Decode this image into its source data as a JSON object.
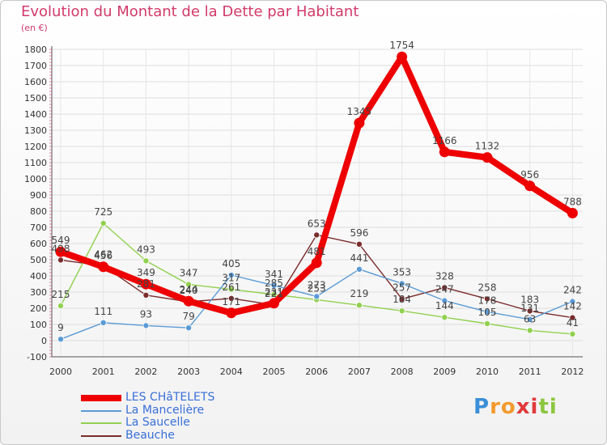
{
  "chart_data": {
    "type": "line",
    "title": "Evolution du Montant de la Dette par Habitant",
    "unit_label": "(en €)",
    "categories": [
      "2000",
      "2001",
      "2002",
      "2003",
      "2004",
      "2005",
      "2006",
      "2007",
      "2008",
      "2009",
      "2010",
      "2011",
      "2012"
    ],
    "ylim": [
      -100,
      1800
    ],
    "yticks": [
      "-100",
      "0",
      "100",
      "200",
      "300",
      "400",
      "500",
      "600",
      "700",
      "800",
      "900",
      "1000",
      "1100",
      "1200",
      "1300",
      "1400",
      "1500",
      "1600",
      "1700",
      "1800"
    ],
    "grid": true,
    "legend_position": "bottom-left",
    "series": [
      {
        "name": "LES CHâTELETS",
        "color": "#ee0000",
        "values": [
          549,
          456,
          349,
          244,
          171,
          231,
          481,
          1345,
          1754,
          1166,
          1132,
          956,
          788
        ],
        "labels": [
          "549",
          "456",
          "349",
          "244",
          "171",
          "231",
          "481",
          "1345",
          "1754",
          "1166",
          "1132",
          "956",
          "788"
        ]
      },
      {
        "name": "La Mancelière",
        "color": "#5b9bd5",
        "values": [
          9,
          111,
          93,
          79,
          405,
          341,
          273,
          441,
          353,
          247,
          178,
          131,
          242
        ],
        "labels": [
          "9",
          "111",
          "93",
          "79",
          "405",
          "341",
          "273",
          "441",
          "353",
          "247",
          "178",
          "131",
          "242"
        ]
      },
      {
        "name": "La Saucelle",
        "color": "#92d050",
        "values": [
          215,
          725,
          493,
          347,
          317,
          285,
          253,
          219,
          184,
          144,
          105,
          63,
          41
        ],
        "labels": [
          "215",
          "725",
          "493",
          "347",
          "317",
          "285",
          "253",
          "219",
          "184",
          "144",
          "105",
          "63",
          "41"
        ]
      },
      {
        "name": "Beauche",
        "color": "#7b2c2c",
        "values": [
          498,
          462,
          281,
          240,
          261,
          221,
          653,
          596,
          257,
          328,
          258,
          183,
          142
        ],
        "labels": [
          "498",
          "462",
          "281",
          "240",
          "261",
          "221",
          "653",
          "596",
          "257",
          "328",
          "258",
          "183",
          "142"
        ]
      }
    ]
  },
  "logo": {
    "letters": [
      "P",
      "r",
      "o",
      "x",
      "i",
      "t",
      "i"
    ],
    "colors": [
      "#3a8fd8",
      "#f29a2e",
      "#f29a2e",
      "#e03a3a",
      "#e03a3a",
      "#8cc63f",
      "#8cc63f"
    ]
  }
}
